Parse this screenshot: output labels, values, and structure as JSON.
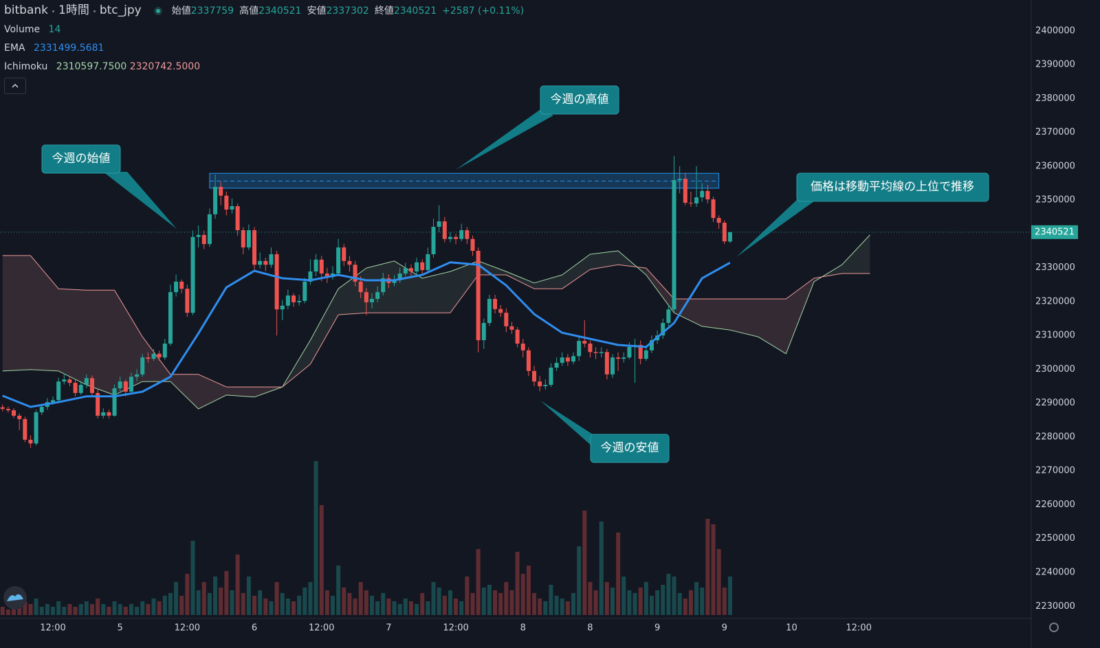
{
  "chart_data": {
    "type": "candlestick",
    "exchange": "bitbank",
    "interval": "1時間",
    "symbol": "btc_jpy",
    "ohlc_labels": [
      "始値",
      "高値",
      "安値",
      "終値"
    ],
    "change": "+2587 (+0.11%)",
    "up_color": "#26a69a",
    "down_color": "#ef5350",
    "xlim": [
      2.54,
      186.82
    ],
    "ylim": [
      2226400,
      2409100
    ],
    "grid": false,
    "xticks": [
      {
        "value": 12,
        "label": "12:00"
      },
      {
        "value": 24,
        "label": "5"
      },
      {
        "value": 36,
        "label": "12:00"
      },
      {
        "value": 48,
        "label": "6"
      },
      {
        "value": 60,
        "label": "12:00"
      },
      {
        "value": 72,
        "label": "7"
      },
      {
        "value": 84,
        "label": "12:00"
      },
      {
        "value": 96,
        "label": "8"
      },
      {
        "value": 108,
        "label": "8"
      },
      {
        "value": 120,
        "label": "9"
      },
      {
        "value": 132,
        "label": "9"
      },
      {
        "value": 144,
        "label": "10"
      },
      {
        "value": 156,
        "label": "12:00"
      }
    ],
    "yticks": [
      2230000,
      2240000,
      2250000,
      2260000,
      2270000,
      2280000,
      2290000,
      2300000,
      2310000,
      2320000,
      2330000,
      2340000,
      2350000,
      2360000,
      2370000,
      2380000,
      2390000,
      2400000
    ],
    "x": [
      3,
      4,
      5,
      6,
      7,
      8,
      9,
      10,
      11,
      12,
      13,
      14,
      15,
      16,
      17,
      18,
      19,
      20,
      21,
      22,
      23,
      24,
      25,
      26,
      27,
      28,
      29,
      30,
      31,
      32,
      33,
      34,
      35,
      36,
      37,
      38,
      39,
      40,
      41,
      42,
      43,
      44,
      45,
      46,
      47,
      48,
      49,
      50,
      51,
      52,
      53,
      54,
      55,
      56,
      57,
      58,
      59,
      60,
      61,
      62,
      63,
      64,
      65,
      66,
      67,
      68,
      69,
      70,
      71,
      72,
      73,
      74,
      75,
      76,
      77,
      78,
      79,
      80,
      81,
      82,
      83,
      84,
      85,
      86,
      87,
      88,
      89,
      90,
      91,
      92,
      93,
      94,
      95,
      96,
      97,
      98,
      99,
      100,
      101,
      102,
      103,
      104,
      105,
      106,
      107,
      108,
      109,
      110,
      111,
      112,
      113,
      114,
      115,
      116,
      117,
      118,
      119,
      120,
      121,
      122,
      123,
      124,
      125,
      126,
      127,
      128,
      129,
      130,
      131,
      132,
      133
    ],
    "candles": [
      [
        2288800,
        2289600,
        2287600,
        2288300
      ],
      [
        2288300,
        2289000,
        2287200,
        2287900
      ],
      [
        2287900,
        2288500,
        2285600,
        2286300
      ],
      [
        2286300,
        2287000,
        2282000,
        2285300
      ],
      [
        2285300,
        2286000,
        2278500,
        2279200
      ],
      [
        2279200,
        2280500,
        2276800,
        2278100
      ],
      [
        2278100,
        2288000,
        2277500,
        2287300
      ],
      [
        2287300,
        2289800,
        2286500,
        2288900
      ],
      [
        2288900,
        2291500,
        2288000,
        2290300
      ],
      [
        2290300,
        2292000,
        2289500,
        2290900
      ],
      [
        2290900,
        2297500,
        2290000,
        2296400
      ],
      [
        2296400,
        2298800,
        2295500,
        2297000
      ],
      [
        2297000,
        2298000,
        2295000,
        2296000
      ],
      [
        2296000,
        2297000,
        2292000,
        2293000
      ],
      [
        2293000,
        2296500,
        2292500,
        2295400
      ],
      [
        2295400,
        2298500,
        2294500,
        2297400
      ],
      [
        2297400,
        2298200,
        2292000,
        2293000
      ],
      [
        2293000,
        2294000,
        2285500,
        2286300
      ],
      [
        2286300,
        2288500,
        2285500,
        2287300
      ],
      [
        2287300,
        2288000,
        2285500,
        2286300
      ],
      [
        2286300,
        2295500,
        2286000,
        2294400
      ],
      [
        2294400,
        2297800,
        2293500,
        2296400
      ],
      [
        2296400,
        2297000,
        2292000,
        2293400
      ],
      [
        2293400,
        2299000,
        2292800,
        2297800
      ],
      [
        2297800,
        2300000,
        2296500,
        2298500
      ],
      [
        2298500,
        2304500,
        2297800,
        2303500
      ],
      [
        2303500,
        2305000,
        2302000,
        2303100
      ],
      [
        2303100,
        2306000,
        2302500,
        2304600
      ],
      [
        2304600,
        2305500,
        2302500,
        2303500
      ],
      [
        2303500,
        2309000,
        2302800,
        2307600
      ],
      [
        2307600,
        2325000,
        2307000,
        2322800
      ],
      [
        2322800,
        2328000,
        2321500,
        2325900
      ],
      [
        2325900,
        2326500,
        2322500,
        2323800
      ],
      [
        2323800,
        2325000,
        2315500,
        2316700
      ],
      [
        2316700,
        2341000,
        2316000,
        2339100
      ],
      [
        2339100,
        2342500,
        2336000,
        2339700
      ],
      [
        2339700,
        2341000,
        2335500,
        2337000
      ],
      [
        2337000,
        2347500,
        2336200,
        2345800
      ],
      [
        2345800,
        2357500,
        2344500,
        2353900
      ],
      [
        2353900,
        2355500,
        2348500,
        2351300
      ],
      [
        2351300,
        2352500,
        2345500,
        2347200
      ],
      [
        2347200,
        2350500,
        2346000,
        2348200
      ],
      [
        2348200,
        2349000,
        2339500,
        2341100
      ],
      [
        2341100,
        2342000,
        2334000,
        2336000
      ],
      [
        2336000,
        2342800,
        2335200,
        2341100
      ],
      [
        2341100,
        2342000,
        2329500,
        2330900
      ],
      [
        2330900,
        2334500,
        2329800,
        2332000
      ],
      [
        2332000,
        2333000,
        2329000,
        2330900
      ],
      [
        2330900,
        2336000,
        2330000,
        2334000
      ],
      [
        2334000,
        2335000,
        2310000,
        2317700
      ],
      [
        2317700,
        2320500,
        2314500,
        2318800
      ],
      [
        2318800,
        2323500,
        2317800,
        2321800
      ],
      [
        2321800,
        2322500,
        2318500,
        2319800
      ],
      [
        2319800,
        2322000,
        2318800,
        2320200
      ],
      [
        2320200,
        2327000,
        2319500,
        2325900
      ],
      [
        2325900,
        2332500,
        2325000,
        2328900
      ],
      [
        2328900,
        2334000,
        2327500,
        2332400
      ],
      [
        2332400,
        2333500,
        2326000,
        2328300
      ],
      [
        2328300,
        2330000,
        2325500,
        2327300
      ],
      [
        2327300,
        2330500,
        2326500,
        2328300
      ],
      [
        2328300,
        2338500,
        2327500,
        2336000
      ],
      [
        2336000,
        2337000,
        2330500,
        2332000
      ],
      [
        2332000,
        2333500,
        2328800,
        2330900
      ],
      [
        2330900,
        2332000,
        2324500,
        2325900
      ],
      [
        2325900,
        2327500,
        2321000,
        2322800
      ],
      [
        2322800,
        2324000,
        2316000,
        2319800
      ],
      [
        2319800,
        2322500,
        2318000,
        2320800
      ],
      [
        2320800,
        2324500,
        2319800,
        2322800
      ],
      [
        2322800,
        2328500,
        2321800,
        2326900
      ],
      [
        2326900,
        2328000,
        2324000,
        2325500
      ],
      [
        2325500,
        2327800,
        2324500,
        2326300
      ],
      [
        2326300,
        2330000,
        2325500,
        2328300
      ],
      [
        2328300,
        2331500,
        2327500,
        2329900
      ],
      [
        2329900,
        2331000,
        2327500,
        2328900
      ],
      [
        2328900,
        2333000,
        2328000,
        2331600
      ],
      [
        2331600,
        2332500,
        2328000,
        2329300
      ],
      [
        2329300,
        2336000,
        2328500,
        2334000
      ],
      [
        2334000,
        2344500,
        2333000,
        2342100
      ],
      [
        2342100,
        2348500,
        2340500,
        2343700
      ],
      [
        2343700,
        2345000,
        2337500,
        2338500
      ],
      [
        2338500,
        2340500,
        2337500,
        2339100
      ],
      [
        2339100,
        2340000,
        2337000,
        2338500
      ],
      [
        2338500,
        2343000,
        2337800,
        2341100
      ],
      [
        2341100,
        2342000,
        2337000,
        2338500
      ],
      [
        2338500,
        2339500,
        2333500,
        2335000
      ],
      [
        2335000,
        2336000,
        2305000,
        2308600
      ],
      [
        2308600,
        2315000,
        2306000,
        2313700
      ],
      [
        2313700,
        2322000,
        2312800,
        2320800
      ],
      [
        2320800,
        2322000,
        2316500,
        2317800
      ],
      [
        2317800,
        2319000,
        2315500,
        2316700
      ],
      [
        2316700,
        2318000,
        2311000,
        2312700
      ],
      [
        2312700,
        2314000,
        2310500,
        2311700
      ],
      [
        2311700,
        2312500,
        2306500,
        2307600
      ],
      [
        2307600,
        2309000,
        2303500,
        2305600
      ],
      [
        2305600,
        2306500,
        2298000,
        2299500
      ],
      [
        2299500,
        2301000,
        2295000,
        2296400
      ],
      [
        2296400,
        2298000,
        2293500,
        2295000
      ],
      [
        2295000,
        2297000,
        2294000,
        2295400
      ],
      [
        2295400,
        2301800,
        2294800,
        2300500
      ],
      [
        2300500,
        2303500,
        2299500,
        2301900
      ],
      [
        2301900,
        2305000,
        2301000,
        2303500
      ],
      [
        2303500,
        2304500,
        2301000,
        2302300
      ],
      [
        2302300,
        2305000,
        2301500,
        2303900
      ],
      [
        2303900,
        2310000,
        2302500,
        2308400
      ],
      [
        2308400,
        2314500,
        2306500,
        2307600
      ],
      [
        2307600,
        2308500,
        2303500,
        2305100
      ],
      [
        2305100,
        2306500,
        2303000,
        2304800
      ],
      [
        2304800,
        2306500,
        2303500,
        2305100
      ],
      [
        2305100,
        2306000,
        2297000,
        2298500
      ],
      [
        2298500,
        2304500,
        2297500,
        2303500
      ],
      [
        2303500,
        2305000,
        2299500,
        2303100
      ],
      [
        2303100,
        2305000,
        2302000,
        2303500
      ],
      [
        2303500,
        2308000,
        2303000,
        2306600
      ],
      [
        2306600,
        2309000,
        2296000,
        2307200
      ],
      [
        2307200,
        2308500,
        2301500,
        2303100
      ],
      [
        2303100,
        2307000,
        2302500,
        2305600
      ],
      [
        2305600,
        2310000,
        2304800,
        2308600
      ],
      [
        2308600,
        2311500,
        2307500,
        2310000
      ],
      [
        2310000,
        2315000,
        2309000,
        2313700
      ],
      [
        2313700,
        2319000,
        2312800,
        2317700
      ],
      [
        2317700,
        2363000,
        2317000,
        2355900
      ],
      [
        2355900,
        2360000,
        2352000,
        2356300
      ],
      [
        2356300,
        2358000,
        2348500,
        2349200
      ],
      [
        2349200,
        2352500,
        2348000,
        2349000
      ],
      [
        2349000,
        2360000,
        2348000,
        2350800
      ],
      [
        2350800,
        2355000,
        2349500,
        2352700
      ],
      [
        2352700,
        2354500,
        2349000,
        2350200
      ],
      [
        2350200,
        2351000,
        2343500,
        2344700
      ],
      [
        2344700,
        2345500,
        2341500,
        2343300
      ],
      [
        2343300,
        2344000,
        2337000,
        2337800
      ],
      [
        2337759,
        2340521,
        2337302,
        2340521
      ]
    ],
    "volume": {
      "name": "Volume",
      "values": [
        3,
        2,
        4,
        3,
        5,
        4,
        6,
        3,
        4,
        3,
        5,
        3,
        4,
        3,
        4,
        5,
        4,
        6,
        4,
        3,
        5,
        4,
        3,
        4,
        3,
        5,
        4,
        6,
        5,
        7,
        8,
        12,
        7,
        15,
        27,
        9,
        12,
        8,
        14,
        10,
        16,
        9,
        22,
        8,
        14,
        7,
        9,
        6,
        5,
        12,
        8,
        6,
        5,
        7,
        10,
        12,
        56,
        40,
        9,
        7,
        18,
        10,
        8,
        6,
        12,
        9,
        7,
        5,
        8,
        6,
        5,
        4,
        6,
        5,
        4,
        8,
        5,
        12,
        10,
        7,
        9,
        6,
        5,
        14,
        8,
        24,
        10,
        11,
        9,
        8,
        12,
        9,
        23,
        15,
        18,
        8,
        6,
        5,
        11,
        7,
        6,
        5,
        8,
        25,
        38,
        12,
        9,
        34,
        12,
        10,
        30,
        14,
        9,
        8,
        10,
        12,
        7,
        9,
        11,
        15,
        14,
        8,
        6,
        9,
        12,
        10,
        35,
        33,
        24,
        10,
        14
      ]
    },
    "ema": {
      "name": "EMA",
      "color": "#2f8ef0",
      "x": [
        3,
        8,
        13,
        18,
        23,
        28,
        33,
        38,
        43,
        48,
        53,
        58,
        63,
        68,
        73,
        78,
        83,
        88,
        93,
        98,
        103,
        108,
        113,
        118,
        123,
        128,
        133
      ],
      "values": [
        2292200,
        2288900,
        2290300,
        2292000,
        2292000,
        2293400,
        2297800,
        2310600,
        2324200,
        2329100,
        2326900,
        2326300,
        2327900,
        2326300,
        2326300,
        2327900,
        2331600,
        2330900,
        2324800,
        2316300,
        2310800,
        2309000,
        2307200,
        2306600,
        2313700,
        2326900,
        2331499.5681
      ]
    },
    "ichimoku": {
      "name": "Ichimoku",
      "current": [
        {
          "value": 2310597.75,
          "label": "2310597.7500"
        },
        {
          "value": 2320742.5,
          "label": "2320742.5000"
        }
      ],
      "current_colors": [
        "#a5d6a7",
        "#ef9a9a"
      ],
      "x": [
        3,
        8,
        13,
        18,
        23,
        28,
        33,
        38,
        43,
        48,
        53,
        58,
        63,
        68,
        73,
        78,
        83,
        88,
        93,
        98,
        103,
        108,
        113,
        118,
        123,
        128,
        133,
        138,
        143,
        148,
        153,
        158
      ],
      "span_a": {
        "color": "#a5d6a7",
        "values": [
          2299500,
          2299900,
          2299500,
          2295400,
          2292400,
          2296400,
          2296400,
          2288300,
          2292400,
          2291800,
          2294800,
          2308600,
          2323800,
          2329900,
          2332000,
          2326900,
          2328900,
          2332000,
          2328900,
          2325500,
          2327900,
          2334000,
          2335000,
          2327900,
          2316700,
          2312700,
          2311600,
          2309600,
          2304600,
          2325900,
          2330900,
          2339700
        ]
      },
      "span_b": {
        "color": "#ef9a9a",
        "values": [
          2333600,
          2333600,
          2323800,
          2323400,
          2323400,
          2309600,
          2298500,
          2298500,
          2294800,
          2294800,
          2294800,
          2301500,
          2316100,
          2316700,
          2316700,
          2316700,
          2316700,
          2327900,
          2327900,
          2323800,
          2323800,
          2329500,
          2330900,
          2329900,
          2320800,
          2320800,
          2320800,
          2320800,
          2320800,
          2326900,
          2328300,
          2328300
        ]
      }
    },
    "highlight": {
      "color": "#2196f3",
      "x": [
        40,
        131
      ],
      "y": [
        2353500,
        2357900
      ],
      "line": 2355600
    },
    "annotations": [
      "今週の始値",
      "今週の高値",
      "今週の安値",
      "価格は移動平均線の上位で推移"
    ]
  }
}
